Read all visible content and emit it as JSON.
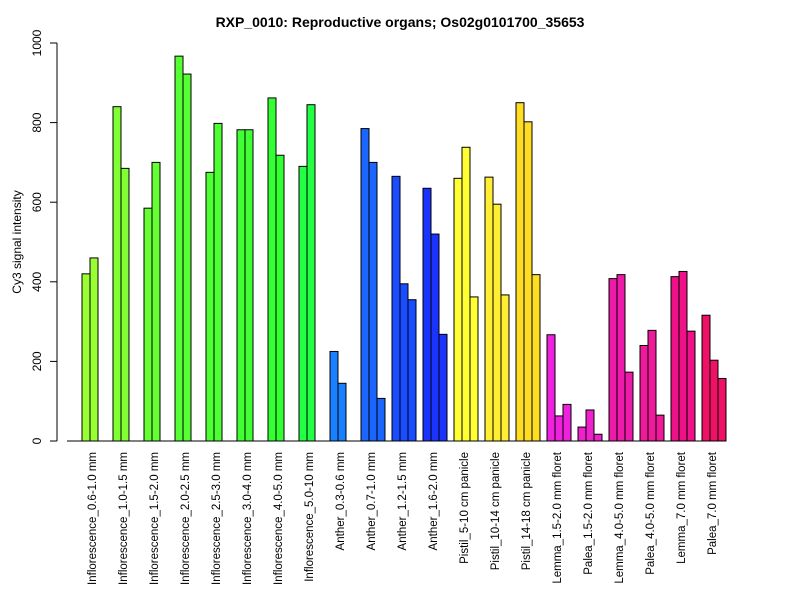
{
  "chart_data": {
    "type": "bar",
    "title": "RXP_0010: Reproductive organs; Os02g0101700_35653",
    "xlabel": "",
    "ylabel": "Cy3 signal intensity",
    "ylim": [
      0,
      1000
    ],
    "yticks": [
      0,
      200,
      400,
      600,
      800,
      1000
    ],
    "groups": [
      {
        "label": "Inflorescence_0.6-1.0 mm",
        "color": "#99FF33",
        "values": [
          420,
          460
        ]
      },
      {
        "label": "Inflorescence_1.0-1.5 mm",
        "color": "#80FF33",
        "values": [
          840,
          685
        ]
      },
      {
        "label": "Inflorescence_1.5-2.0 mm",
        "color": "#66FF33",
        "values": [
          585,
          700
        ]
      },
      {
        "label": "Inflorescence_2.0-2.5 mm",
        "color": "#55FF33",
        "values": [
          967,
          922
        ]
      },
      {
        "label": "Inflorescence_2.5-3.0 mm",
        "color": "#4DFF33",
        "values": [
          675,
          798
        ]
      },
      {
        "label": "Inflorescence_3.0-4.0 mm",
        "color": "#40FF33",
        "values": [
          782,
          782
        ]
      },
      {
        "label": "Inflorescence_4.0-5.0 mm",
        "color": "#33FF33",
        "values": [
          862,
          718
        ]
      },
      {
        "label": "Inflorescence_5.0-10 mm",
        "color": "#22FF44",
        "values": [
          690,
          845
        ]
      },
      {
        "label": "Anther_0.3-0.6 mm",
        "color": "#1A80FF",
        "values": [
          225,
          145
        ]
      },
      {
        "label": "Anther_0.7-1.0 mm",
        "color": "#1A66FF",
        "values": [
          785,
          700,
          107
        ]
      },
      {
        "label": "Anther_1.2-1.5 mm",
        "color": "#1A4DFF",
        "values": [
          665,
          395,
          355
        ]
      },
      {
        "label": "Anther_1.6-2.0 mm",
        "color": "#1A33FF",
        "values": [
          635,
          520,
          268
        ]
      },
      {
        "label": "Pistil_5-10 cm panicle",
        "color": "#FFFF33",
        "values": [
          660,
          738,
          362
        ]
      },
      {
        "label": "Pistil_10-14 cm panicle",
        "color": "#FFEE33",
        "values": [
          663,
          595,
          367
        ]
      },
      {
        "label": "Pistil_14-18 cm panicle",
        "color": "#FFDD22",
        "values": [
          850,
          802,
          418
        ]
      },
      {
        "label": "Lemma_1.5-2.0 mm floret",
        "color": "#EE22DD",
        "values": [
          267,
          63,
          92
        ]
      },
      {
        "label": "Palea_1.5-2.0 mm floret",
        "color": "#EE22CC",
        "values": [
          35,
          78,
          17
        ]
      },
      {
        "label": "Lemma_4.0-5.0 mm floret",
        "color": "#EE1AAA",
        "values": [
          408,
          418,
          173
        ]
      },
      {
        "label": "Palea_4.0-5.0 mm floret",
        "color": "#EE1A99",
        "values": [
          240,
          278,
          65
        ]
      },
      {
        "label": "Lemma_7.0 mm floret",
        "color": "#EE1188",
        "values": [
          413,
          426,
          276
        ]
      },
      {
        "label": "Palea_7.0 mm floret",
        "color": "#EE1166",
        "values": [
          316,
          203,
          157
        ]
      }
    ],
    "grid": false,
    "legend": "none"
  }
}
